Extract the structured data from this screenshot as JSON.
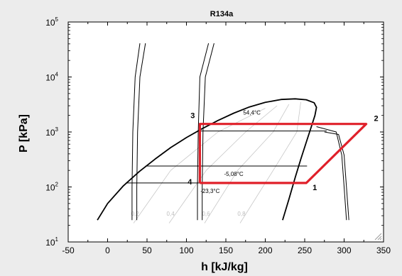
{
  "chart_data": {
    "type": "line",
    "title": "R134a",
    "xlabel": "h [kJ/kg]",
    "ylabel": "P [kPa]",
    "xlim": [
      -50,
      350
    ],
    "ylim": [
      10,
      100000
    ],
    "y_scale": "log",
    "x_ticks": [
      "-50",
      "0",
      "50",
      "100",
      "150",
      "200",
      "250",
      "300",
      "350"
    ],
    "y_ticks": [
      {
        "base": "10",
        "exp": "1"
      },
      {
        "base": "10",
        "exp": "2"
      },
      {
        "base": "10",
        "exp": "3"
      },
      {
        "base": "10",
        "exp": "4"
      },
      {
        "base": "10",
        "exp": "5"
      }
    ],
    "grid": false,
    "saturation_dome": [
      [
        -13,
        25
      ],
      [
        0,
        50
      ],
      [
        20,
        105
      ],
      [
        40,
        190
      ],
      [
        60,
        320
      ],
      [
        80,
        520
      ],
      [
        100,
        790
      ],
      [
        120,
        1150
      ],
      [
        140,
        1620
      ],
      [
        160,
        2200
      ],
      [
        180,
        2850
      ],
      [
        200,
        3450
      ],
      [
        220,
        3900
      ],
      [
        238,
        4000
      ],
      [
        252,
        3850
      ],
      [
        262,
        3400
      ],
      [
        265,
        2800
      ],
      [
        263,
        2000
      ],
      [
        258,
        1200
      ],
      [
        252,
        650
      ],
      [
        245,
        320
      ],
      [
        238,
        150
      ],
      [
        230,
        60
      ],
      [
        222,
        25
      ]
    ],
    "vapor_isotherm": [
      [
        265,
        1250
      ],
      [
        290,
        1000
      ],
      [
        297,
        380
      ],
      [
        300,
        100
      ],
      [
        303,
        25
      ]
    ],
    "vapor_isotherm_2": [
      [
        275,
        1000
      ],
      [
        293,
        900
      ],
      [
        300,
        380
      ],
      [
        303,
        100
      ],
      [
        306,
        25
      ]
    ],
    "liquid_lines": [
      [
        [
          41,
          41000
        ],
        [
          35,
          10000
        ],
        [
          32,
          1000
        ],
        [
          31,
          100
        ],
        [
          31,
          25
        ]
      ],
      [
        [
          48,
          41000
        ],
        [
          41,
          10000
        ],
        [
          38,
          1000
        ],
        [
          37,
          100
        ],
        [
          37,
          25
        ]
      ],
      [
        [
          128,
          41000
        ],
        [
          117,
          10000
        ],
        [
          115,
          1000
        ],
        [
          114,
          100
        ],
        [
          114,
          25
        ]
      ],
      [
        [
          135,
          41000
        ],
        [
          124,
          10000
        ],
        [
          121,
          1000
        ],
        [
          120,
          100
        ],
        [
          120,
          25
        ]
      ]
    ],
    "evaporator_lines": [
      {
        "label": "-5,08°C",
        "h": [
          48,
          253
        ],
        "p": 240
      },
      {
        "label": "-23,3°C",
        "h": [
          23,
          240
        ],
        "p": 118
      }
    ],
    "condenser_isobar": {
      "label": "54,4°C",
      "h": [
        117,
        278
      ],
      "p": 1400
    },
    "quality_lines": [
      {
        "label": "0,2",
        "points": [
          [
            33,
            22
          ],
          [
            80,
            200
          ],
          [
            140,
            1000
          ],
          [
            200,
            2700
          ]
        ]
      },
      {
        "label": "0,4",
        "points": [
          [
            78,
            22
          ],
          [
            125,
            200
          ],
          [
            175,
            1000
          ],
          [
            215,
            3000
          ]
        ]
      },
      {
        "label": "0,6",
        "points": [
          [
            123,
            22
          ],
          [
            165,
            200
          ],
          [
            210,
            1000
          ],
          [
            230,
            3200
          ]
        ]
      },
      {
        "label": "0,8",
        "points": [
          [
            168,
            22
          ],
          [
            210,
            200
          ],
          [
            240,
            1000
          ],
          [
            245,
            3500
          ]
        ]
      }
    ],
    "cycle": {
      "points": [
        {
          "label": "1",
          "h": 252,
          "p": 118
        },
        {
          "label": "2",
          "h": 328,
          "p": 1400
        },
        {
          "label": "3",
          "h": 117,
          "p": 1400
        },
        {
          "label": "4",
          "h": 117,
          "p": 118
        }
      ],
      "color": "#e0202a"
    },
    "colors": {
      "curve": "#000000",
      "quality": "#c8c8c8",
      "cycle": "#e0202a",
      "frame": "#ffffff"
    }
  }
}
